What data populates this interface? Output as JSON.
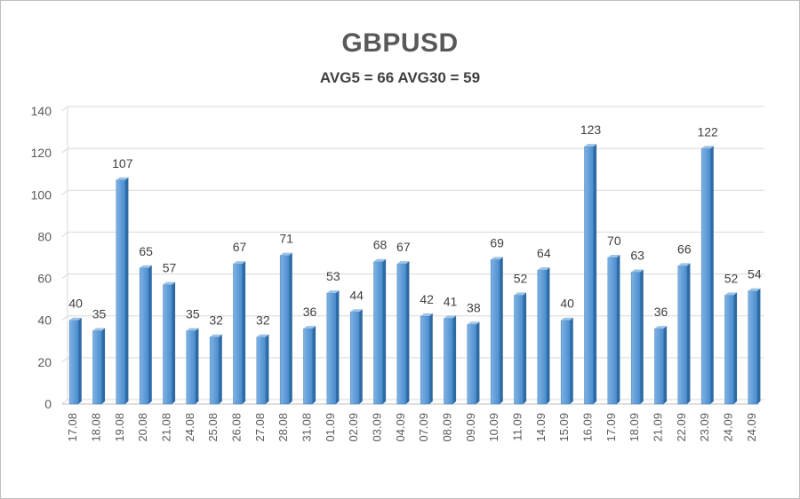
{
  "chart_data": {
    "type": "bar",
    "title": "GBPUSD",
    "subtitle": "AVG5 = 66 AVG30 = 59",
    "categories": [
      "17.08",
      "18.08",
      "19.08",
      "20.08",
      "21.08",
      "24.08",
      "25.08",
      "26.08",
      "27.08",
      "28.08",
      "31.08",
      "01.09",
      "02.09",
      "03.09",
      "04.09",
      "07.09",
      "08.09",
      "09.09",
      "10.09",
      "11.09",
      "14.09",
      "15.09",
      "16.09",
      "17.09",
      "18.09",
      "21.09",
      "22.09",
      "23.09",
      "24.09",
      "24.09"
    ],
    "values": [
      40,
      35,
      107,
      65,
      57,
      35,
      32,
      67,
      32,
      71,
      36,
      53,
      44,
      68,
      67,
      42,
      41,
      38,
      69,
      52,
      64,
      40,
      123,
      70,
      63,
      36,
      66,
      122,
      52,
      54
    ],
    "yticks": [
      0,
      20,
      40,
      60,
      80,
      100,
      120,
      140
    ],
    "ylim": [
      0,
      140
    ],
    "grid": true,
    "legend": "none",
    "colors": {
      "bar_front": "#5b9bd5",
      "bar_side": "#2e6aa3",
      "bar_top": "#9dc3e6",
      "grid": "#d9d9d9",
      "axis": "#bfbfbf"
    }
  }
}
